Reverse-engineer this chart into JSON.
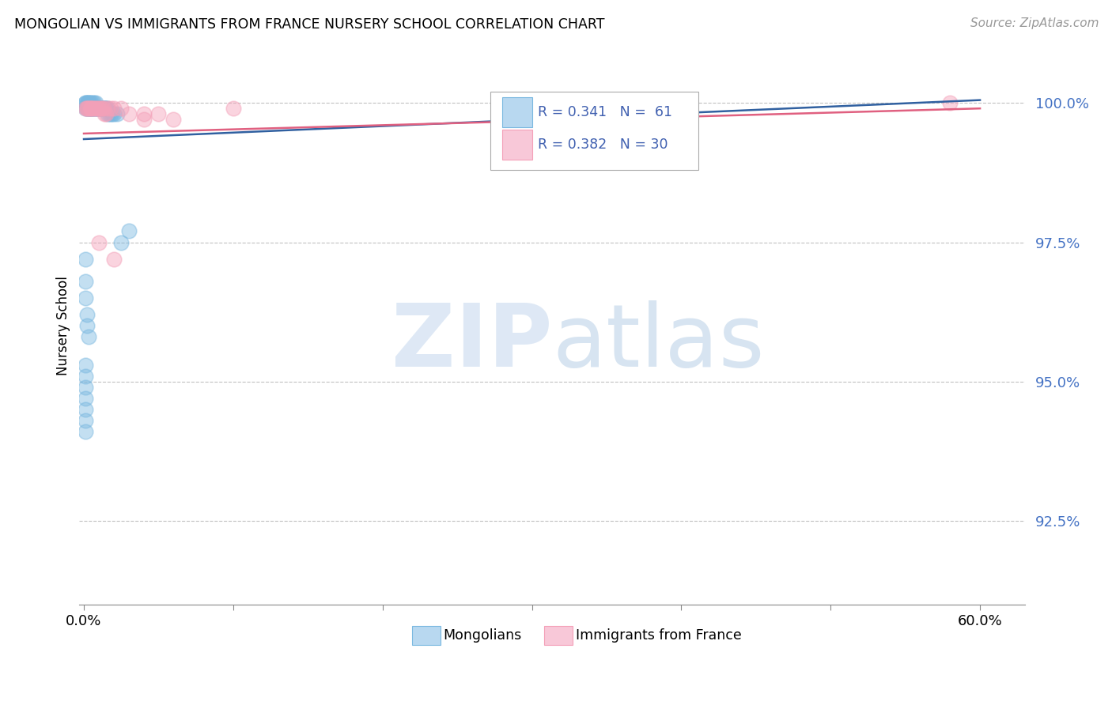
{
  "title": "MONGOLIAN VS IMMIGRANTS FROM FRANCE NURSERY SCHOOL CORRELATION CHART",
  "source": "Source: ZipAtlas.com",
  "ylabel": "Nursery School",
  "ytick_labels": [
    "92.5%",
    "95.0%",
    "97.5%",
    "100.0%"
  ],
  "ytick_values": [
    0.925,
    0.95,
    0.975,
    1.0
  ],
  "xlim_min": -0.003,
  "xlim_max": 0.63,
  "ylim_min": 0.91,
  "ylim_max": 1.01,
  "mongolian_color": "#7ab8e0",
  "france_color": "#f4a0b8",
  "mongolian_line_color": "#3060a0",
  "france_line_color": "#e06080",
  "mon_x": [
    0.001,
    0.001,
    0.001,
    0.002,
    0.002,
    0.002,
    0.002,
    0.003,
    0.003,
    0.003,
    0.003,
    0.004,
    0.004,
    0.004,
    0.005,
    0.005,
    0.005,
    0.006,
    0.006,
    0.006,
    0.007,
    0.007,
    0.007,
    0.008,
    0.008,
    0.009,
    0.009,
    0.01,
    0.01,
    0.011,
    0.011,
    0.012,
    0.012,
    0.013,
    0.013,
    0.014,
    0.014,
    0.015,
    0.015,
    0.016,
    0.016,
    0.017,
    0.018,
    0.019,
    0.02,
    0.022,
    0.025,
    0.03,
    0.001,
    0.001,
    0.001,
    0.002,
    0.002,
    0.003,
    0.001,
    0.001,
    0.001,
    0.001,
    0.001,
    0.001,
    0.001
  ],
  "mon_y": [
    1.0,
    1.0,
    0.999,
    1.0,
    1.0,
    0.999,
    0.999,
    1.0,
    1.0,
    0.999,
    0.999,
    1.0,
    0.999,
    0.999,
    1.0,
    0.999,
    0.999,
    1.0,
    0.999,
    0.999,
    1.0,
    0.999,
    0.999,
    1.0,
    0.999,
    0.999,
    0.999,
    0.999,
    0.999,
    0.999,
    0.999,
    0.999,
    0.999,
    0.999,
    0.999,
    0.999,
    0.999,
    0.999,
    0.999,
    0.999,
    0.998,
    0.998,
    0.998,
    0.998,
    0.998,
    0.998,
    0.975,
    0.977,
    0.972,
    0.968,
    0.965,
    0.962,
    0.96,
    0.958,
    0.953,
    0.951,
    0.949,
    0.947,
    0.945,
    0.943,
    0.941
  ],
  "fra_x": [
    0.001,
    0.002,
    0.003,
    0.004,
    0.005,
    0.005,
    0.006,
    0.007,
    0.008,
    0.009,
    0.01,
    0.011,
    0.012,
    0.013,
    0.014,
    0.015,
    0.016,
    0.018,
    0.02,
    0.025,
    0.03,
    0.04,
    0.05,
    0.06,
    0.01,
    0.02,
    0.04,
    0.1,
    0.58,
    0.002
  ],
  "fra_y": [
    0.999,
    0.999,
    0.999,
    0.999,
    0.999,
    0.999,
    0.999,
    0.999,
    0.999,
    0.999,
    0.999,
    0.999,
    0.999,
    0.999,
    0.998,
    0.998,
    0.999,
    0.999,
    0.999,
    0.999,
    0.998,
    0.998,
    0.998,
    0.997,
    0.975,
    0.972,
    0.997,
    0.999,
    1.0,
    0.999
  ],
  "mon_trend_x": [
    0.0,
    0.6
  ],
  "mon_trend_y": [
    0.9935,
    1.0005
  ],
  "fra_trend_x": [
    0.0,
    0.6
  ],
  "fra_trend_y": [
    0.9945,
    0.999
  ]
}
